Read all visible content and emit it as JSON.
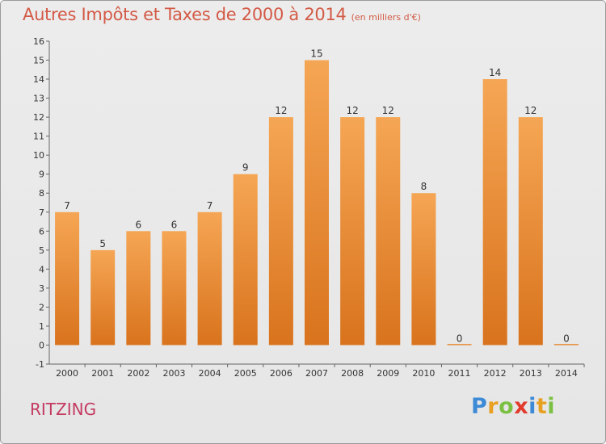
{
  "title": "Autres Impôts et Taxes de 2000 à 2014",
  "subtitle": "(en milliers d'€)",
  "commune": "RITZING",
  "logo": {
    "letters": [
      "P",
      "r",
      "o",
      "x",
      "i",
      "t",
      "i"
    ],
    "colors": [
      "#3d8ad6",
      "#e8a020",
      "#7cc043",
      "#e23a2d",
      "#3d8ad6",
      "#e8a020",
      "#7cc043"
    ]
  },
  "colors": {
    "bar_light": "#f5a654",
    "bar_dark": "#d9731d"
  },
  "chart_data": {
    "type": "bar",
    "categories": [
      "2000",
      "2001",
      "2002",
      "2003",
      "2004",
      "2005",
      "2006",
      "2007",
      "2008",
      "2009",
      "2010",
      "2011",
      "2012",
      "2013",
      "2014"
    ],
    "values": [
      7,
      5,
      6,
      6,
      7,
      9,
      12,
      15,
      12,
      12,
      8,
      0,
      14,
      12,
      0
    ],
    "title": "Autres Impôts et Taxes de 2000 à 2014",
    "subtitle": "(en milliers d'€)",
    "ylim": [
      -1,
      16
    ],
    "yticks": [
      -1,
      0,
      1,
      2,
      3,
      4,
      5,
      6,
      7,
      8,
      9,
      10,
      11,
      12,
      13,
      14,
      15,
      16
    ],
    "grid": false,
    "legend": "none"
  }
}
